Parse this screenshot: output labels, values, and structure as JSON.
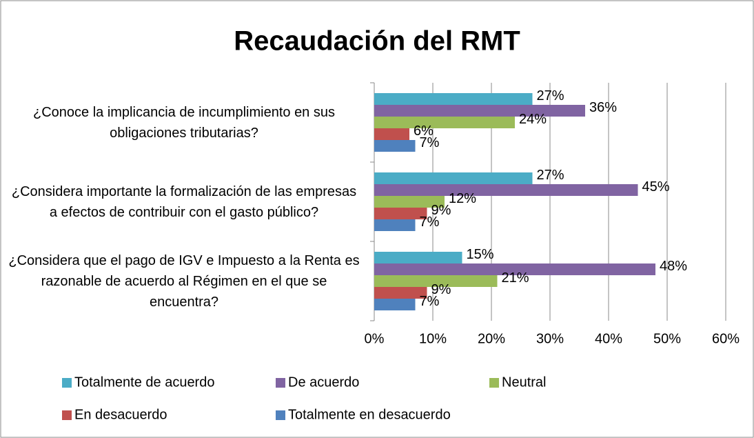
{
  "chart_data": {
    "type": "barh",
    "title": "Recaudación del RMT",
    "categories": [
      "¿Conoce la implicancia de incumplimiento en sus obligaciones tributarias?",
      "¿Considera importante la formalización de las empresas a efectos de contribuir con el gasto público?",
      "¿Considera que el pago de IGV e Impuesto a la Renta es razonable de acuerdo al Régimen en el que se encuentra?"
    ],
    "series": [
      {
        "name": "Totalmente de acuerdo",
        "color": "#4bacc6",
        "values": [
          27,
          27,
          15
        ],
        "value_labels": [
          "27%",
          "27%",
          "15%"
        ]
      },
      {
        "name": "De acuerdo",
        "color": "#8064a2",
        "values": [
          36,
          45,
          48
        ],
        "value_labels": [
          "36%",
          "45%",
          "48%"
        ]
      },
      {
        "name": "Neutral",
        "color": "#9bbb59",
        "values": [
          24,
          12,
          21
        ],
        "value_labels": [
          "24%",
          "12%",
          "21%"
        ]
      },
      {
        "name": "En desacuerdo",
        "color": "#c0504d",
        "values": [
          6,
          9,
          9
        ],
        "value_labels": [
          "6%",
          "9%",
          "9%"
        ]
      },
      {
        "name": "Totalmente en desacuerdo",
        "color": "#4f81bd",
        "values": [
          7,
          7,
          7
        ],
        "value_labels": [
          "7%",
          "7%",
          "7%"
        ]
      }
    ],
    "xlim": [
      0,
      60
    ],
    "xticks": [
      {
        "value": 0,
        "label": "0%"
      },
      {
        "value": 10,
        "label": "10%"
      },
      {
        "value": 20,
        "label": "20%"
      },
      {
        "value": 30,
        "label": "30%"
      },
      {
        "value": 40,
        "label": "40%"
      },
      {
        "value": 50,
        "label": "50%"
      },
      {
        "value": 60,
        "label": "60%"
      }
    ],
    "grid": true,
    "legend": "bottom"
  }
}
